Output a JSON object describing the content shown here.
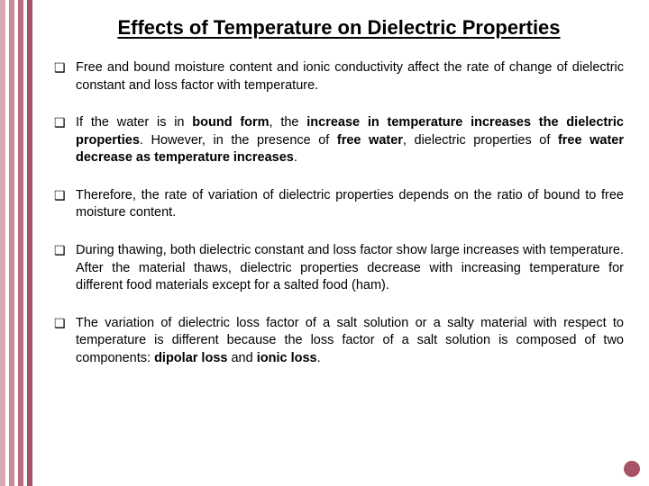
{
  "title": "Effects of Temperature on Dielectric Properties",
  "bars": {
    "colors": [
      "#d9a8b4",
      "#ffffff",
      "#c78b99",
      "#ffffff",
      "#b86e80",
      "#ffffff",
      "#a85266"
    ],
    "widths": [
      6,
      4,
      6,
      4,
      6,
      4,
      6
    ]
  },
  "dot_color": "#a85266",
  "bullets": [
    {
      "html": "Free and bound moisture content and ionic conductivity affect the rate of change of dielectric constant and loss factor with temperature."
    },
    {
      "html": "If the water is in <b>bound form</b>, the <b>increase in temperature increases the dielectric properties</b>. However, in the presence of <b>free water</b>, dielectric properties of <b>free water decrease as temperature increases</b>."
    },
    {
      "html": "Therefore, the rate of variation of dielectric properties depends on the ratio of bound to free moisture content."
    },
    {
      "html": "During thawing, both dielectric constant and loss factor show large increases with temperature. After the material thaws, dielectric properties decrease with increasing temperature for different food materials except for a salted food (ham)."
    },
    {
      "html": "The variation of dielectric loss factor of a salt solution or a salty material with respect to temperature is different because the loss factor of a salt solution is composed of two components: <b>dipolar loss</b> and <b>ionic loss</b>."
    }
  ]
}
